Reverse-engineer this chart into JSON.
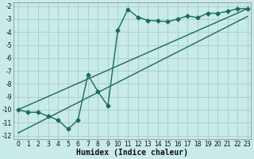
{
  "xlabel": "Humidex (Indice chaleur)",
  "bg_color": "#c8eae8",
  "line_color": "#1a6b5a",
  "grid_color": "#a8ccc8",
  "xlim": [
    -0.5,
    23.3
  ],
  "ylim": [
    -12.3,
    -1.7
  ],
  "xticks": [
    0,
    1,
    2,
    3,
    4,
    5,
    6,
    7,
    8,
    9,
    10,
    11,
    12,
    13,
    14,
    15,
    16,
    17,
    18,
    19,
    20,
    21,
    22,
    23
  ],
  "yticks": [
    -2,
    -3,
    -4,
    -5,
    -6,
    -7,
    -8,
    -9,
    -10,
    -11,
    -12
  ],
  "main_x": [
    0,
    1,
    2,
    3,
    4,
    5,
    6,
    7,
    8,
    9,
    10,
    11,
    12,
    13,
    14,
    15,
    16,
    17,
    18,
    19,
    20,
    21,
    22,
    23
  ],
  "main_y": [
    -10.0,
    -10.2,
    -10.2,
    -10.5,
    -10.8,
    -11.5,
    -10.8,
    -7.3,
    -8.6,
    -9.7,
    -3.85,
    -2.25,
    -2.85,
    -3.1,
    -3.15,
    -3.2,
    -3.0,
    -2.75,
    -2.9,
    -2.55,
    -2.55,
    -2.4,
    -2.2,
    -2.2
  ],
  "line1_x": [
    0,
    23
  ],
  "line1_y": [
    -10.0,
    -2.2
  ],
  "line2_x": [
    0,
    23
  ],
  "line2_y": [
    -11.8,
    -2.8
  ],
  "marker": "D",
  "marker_size": 2.5,
  "line_width": 1.0,
  "tick_fontsize": 5.5,
  "label_fontsize": 7.0
}
